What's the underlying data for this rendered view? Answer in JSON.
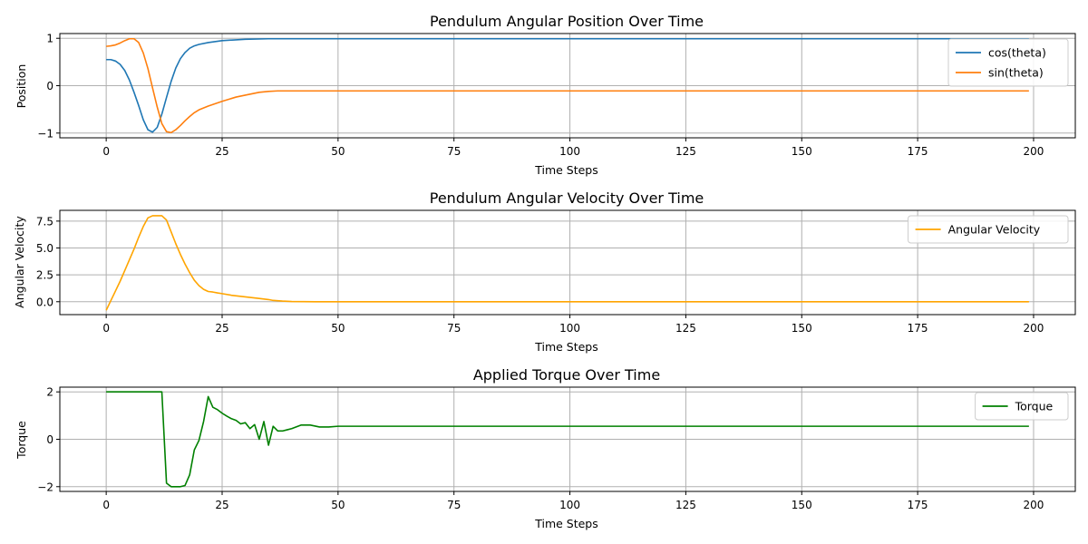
{
  "figure": {
    "background": "#ffffff",
    "grid_color": "#b0b0b0"
  },
  "chart_data": [
    {
      "type": "line",
      "title": "Pendulum Angular Position Over Time",
      "xlabel": "Time Steps",
      "ylabel": "Position",
      "xlim": [
        -10,
        209
      ],
      "ylim": [
        -1.1,
        1.1
      ],
      "xticks": [
        0,
        25,
        50,
        75,
        100,
        125,
        150,
        175,
        200
      ],
      "yticks": [
        -1,
        0,
        1
      ],
      "ytick_labels": [
        "−1",
        "0",
        "1"
      ],
      "grid": true,
      "legend_position": "top-right",
      "series": [
        {
          "name": "cos(theta)",
          "color": "#1f77b4",
          "x": [
            0,
            1,
            2,
            3,
            4,
            5,
            6,
            7,
            8,
            9,
            10,
            11,
            12,
            13,
            14,
            15,
            16,
            17,
            18,
            19,
            20,
            22,
            25,
            30,
            35,
            40,
            199
          ],
          "y": [
            0.55,
            0.55,
            0.52,
            0.45,
            0.32,
            0.12,
            -0.14,
            -0.42,
            -0.72,
            -0.93,
            -0.98,
            -0.88,
            -0.6,
            -0.25,
            0.09,
            0.37,
            0.57,
            0.7,
            0.79,
            0.84,
            0.87,
            0.91,
            0.95,
            0.98,
            0.99,
            0.99,
            0.99
          ]
        },
        {
          "name": "sin(theta)",
          "color": "#ff7f0e",
          "x": [
            0,
            1,
            2,
            3,
            4,
            5,
            6,
            7,
            8,
            9,
            10,
            11,
            12,
            13,
            14,
            15,
            16,
            17,
            18,
            19,
            20,
            22,
            25,
            28,
            30,
            33,
            35,
            37,
            40,
            199
          ],
          "y": [
            0.83,
            0.84,
            0.86,
            0.9,
            0.95,
            0.99,
            0.99,
            0.91,
            0.69,
            0.36,
            -0.05,
            -0.45,
            -0.8,
            -0.97,
            -0.99,
            -0.93,
            -0.84,
            -0.74,
            -0.65,
            -0.57,
            -0.51,
            -0.43,
            -0.33,
            -0.24,
            -0.2,
            -0.14,
            -0.12,
            -0.11,
            -0.11,
            -0.11
          ]
        }
      ]
    },
    {
      "type": "line",
      "title": "Pendulum Angular Velocity Over Time",
      "xlabel": "Time Steps",
      "ylabel": "Angular Velocity",
      "xlim": [
        -10,
        209
      ],
      "ylim": [
        -1.2,
        8.5
      ],
      "xticks": [
        0,
        25,
        50,
        75,
        100,
        125,
        150,
        175,
        200
      ],
      "yticks": [
        0.0,
        2.5,
        5.0,
        7.5
      ],
      "ytick_labels": [
        "0.0",
        "2.5",
        "5.0",
        "7.5"
      ],
      "grid": true,
      "legend_position": "top-right",
      "series": [
        {
          "name": "Angular Velocity",
          "color": "#ffa500",
          "x": [
            0,
            1,
            2,
            3,
            4,
            5,
            6,
            7,
            8,
            9,
            10,
            11,
            12,
            13,
            14,
            15,
            16,
            17,
            18,
            19,
            20,
            21,
            22,
            23,
            24,
            25,
            27,
            30,
            33,
            35,
            36,
            38,
            40,
            45,
            199
          ],
          "y": [
            -0.8,
            0.1,
            1.0,
            1.9,
            2.9,
            3.9,
            4.9,
            6.0,
            7.0,
            7.8,
            8.0,
            8.0,
            8.0,
            7.6,
            6.5,
            5.4,
            4.4,
            3.5,
            2.7,
            2.0,
            1.5,
            1.15,
            0.95,
            0.9,
            0.82,
            0.75,
            0.6,
            0.45,
            0.3,
            0.2,
            0.12,
            0.06,
            0.02,
            0.0,
            0.0
          ]
        }
      ]
    },
    {
      "type": "line",
      "title": "Applied Torque Over Time",
      "xlabel": "Time Steps",
      "ylabel": "Torque",
      "xlim": [
        -10,
        209
      ],
      "ylim": [
        -2.2,
        2.2
      ],
      "xticks": [
        0,
        25,
        50,
        75,
        100,
        125,
        150,
        175,
        200
      ],
      "yticks": [
        -2,
        0,
        2
      ],
      "ytick_labels": [
        "−2",
        "0",
        "2"
      ],
      "grid": true,
      "legend_position": "top-right",
      "series": [
        {
          "name": "Torque",
          "color": "#008000",
          "x": [
            0,
            11,
            12,
            13,
            14,
            15,
            16,
            17,
            18,
            19,
            20,
            21,
            22,
            23,
            24,
            25,
            26,
            27,
            28,
            29,
            30,
            31,
            32,
            33,
            34,
            35,
            36,
            37,
            38,
            39,
            40,
            42,
            44,
            46,
            48,
            50,
            52,
            55,
            60,
            199
          ],
          "y": [
            2,
            2,
            2,
            -1.85,
            -2,
            -2,
            -2,
            -1.95,
            -1.5,
            -0.45,
            -0.05,
            0.75,
            1.8,
            1.35,
            1.25,
            1.1,
            0.98,
            0.87,
            0.8,
            0.65,
            0.7,
            0.45,
            0.62,
            0.0,
            0.75,
            -0.25,
            0.55,
            0.35,
            0.35,
            0.4,
            0.45,
            0.6,
            0.6,
            0.52,
            0.52,
            0.55,
            0.55,
            0.55,
            0.55,
            0.55
          ]
        }
      ]
    }
  ]
}
